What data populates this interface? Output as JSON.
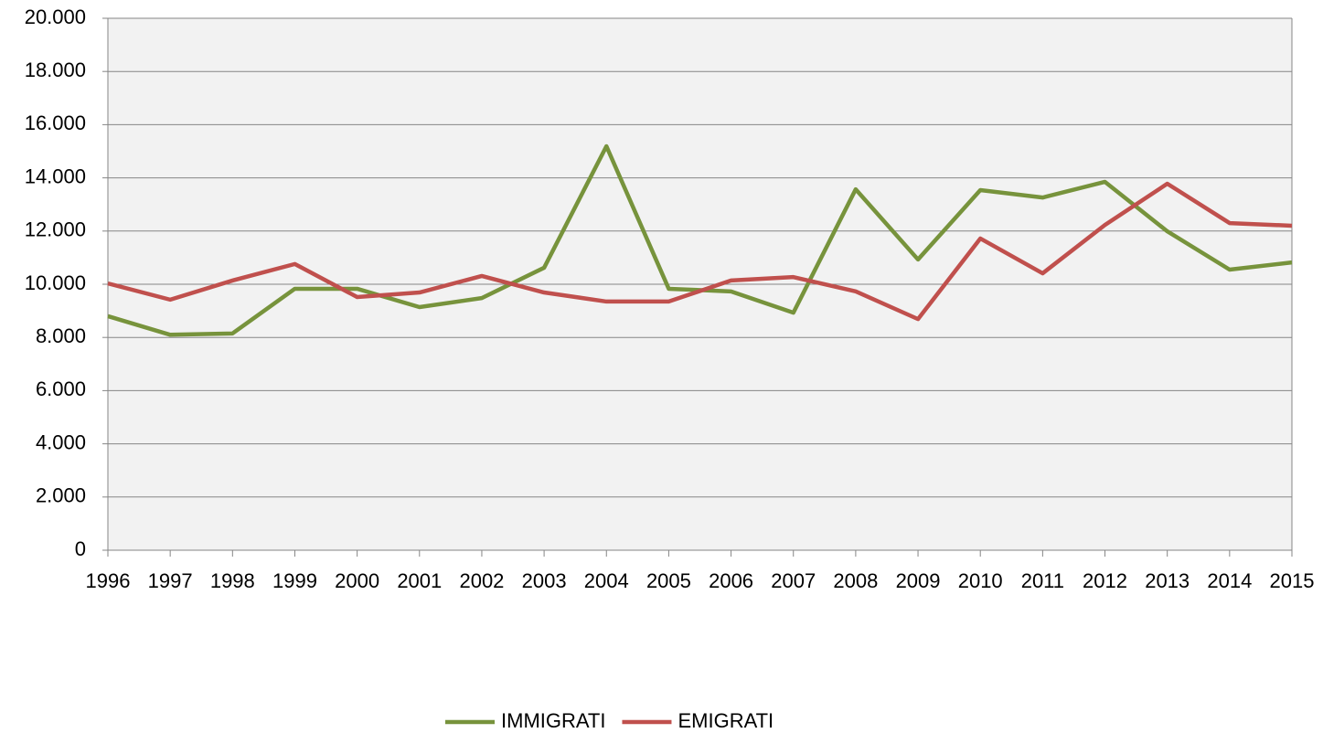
{
  "chart_data": {
    "type": "line",
    "categories": [
      "1996",
      "1997",
      "1998",
      "1999",
      "2000",
      "2001",
      "2002",
      "2003",
      "2004",
      "2005",
      "2006",
      "2007",
      "2008",
      "2009",
      "2010",
      "2011",
      "2012",
      "2013",
      "2014",
      "2015"
    ],
    "series": [
      {
        "name": "IMMIGRATI",
        "color": "#77933c",
        "values": [
          8800,
          8100,
          8150,
          9830,
          9830,
          9140,
          9480,
          10620,
          15190,
          9830,
          9730,
          8930,
          13570,
          10930,
          13540,
          13260,
          13850,
          11990,
          10550,
          10820
        ]
      },
      {
        "name": "EMIGRATI",
        "color": "#c0504d",
        "values": [
          10030,
          9420,
          10140,
          10760,
          9520,
          9690,
          10310,
          9690,
          9350,
          9350,
          10140,
          10270,
          9730,
          8690,
          11720,
          10410,
          12230,
          13780,
          12300,
          12200
        ]
      }
    ],
    "ylim": [
      0,
      20000
    ],
    "yticks": [
      0,
      {
        "value": 2000,
        "label": "2.000"
      },
      {
        "value": 4000,
        "label": "4.000"
      },
      {
        "value": 6000,
        "label": "6.000"
      },
      {
        "value": 8000,
        "label": "8.000"
      },
      {
        "value": 10000,
        "label": "10.000"
      },
      {
        "value": 12000,
        "label": "12.000"
      },
      {
        "value": 14000,
        "label": "14.000"
      },
      {
        "value": 16000,
        "label": "16.000"
      },
      {
        "value": 18000,
        "label": "18.000"
      },
      {
        "value": 20000,
        "label": "20.000"
      }
    ],
    "grid": true,
    "legend": "bottom"
  }
}
